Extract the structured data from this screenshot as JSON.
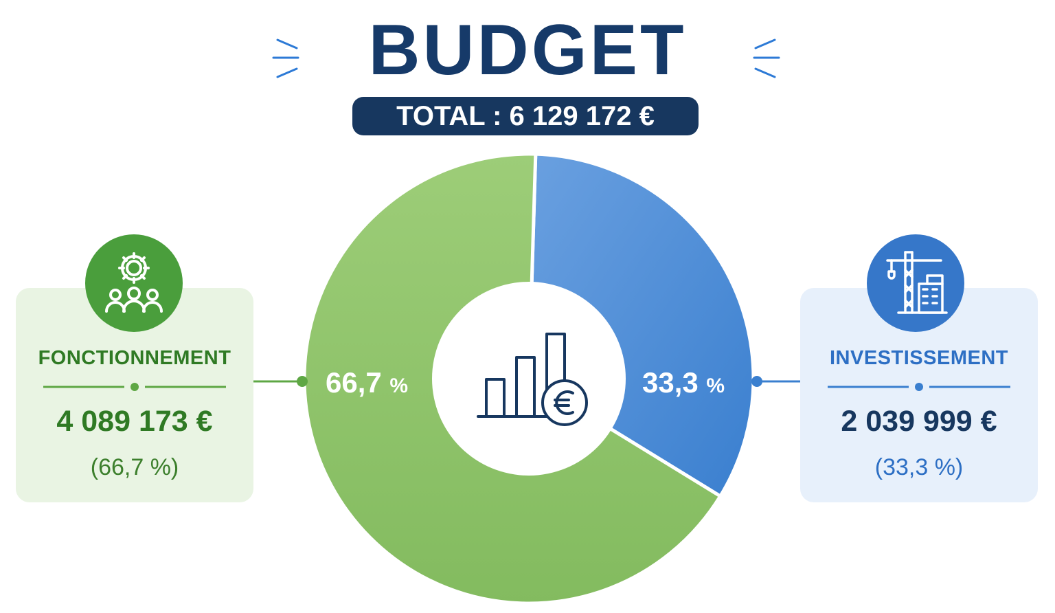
{
  "header": {
    "title": "BUDGET",
    "total": "TOTAL : 6 129 172 €"
  },
  "chart_data": {
    "type": "pie",
    "title": "BUDGET",
    "total": "TOTAL : 6 129 172 €",
    "categories": [
      "FONCTIONNEMENT",
      "INVESTISSEMENT"
    ],
    "values": [
      4089173,
      2039999
    ],
    "percent_labels": [
      "66,7",
      "33,3"
    ],
    "percent_sign": "%",
    "colors": [
      "#8cc26a",
      "#4a88d6"
    ],
    "legend": "left-right"
  },
  "cards": {
    "fonctionnement": {
      "label": "FONCTIONNEMENT",
      "amount": "4 089 173 €",
      "percent": "(66,7 %)",
      "icon": "team-gear-icon",
      "color": "#2f7a24"
    },
    "investissement": {
      "label": "INVESTISSEMENT",
      "amount": "2 039 999 €",
      "percent": "(33,3 %)",
      "icon": "crane-building-icon",
      "color": "#2d6fc4"
    }
  },
  "center_icon": "bar-chart-euro-icon"
}
